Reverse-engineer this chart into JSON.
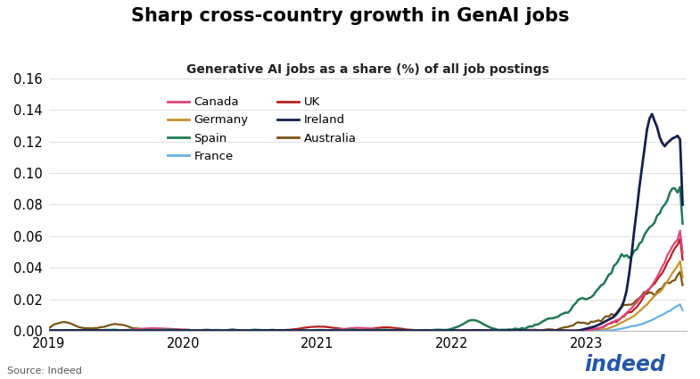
{
  "title": "Sharp cross-country growth in GenAI jobs",
  "subtitle": "Generative AI jobs as a share (%) of all job postings",
  "source": "Source: Indeed",
  "xlim": [
    2019.0,
    2023.75
  ],
  "ylim": [
    0.0,
    0.16
  ],
  "yticks": [
    0.0,
    0.02,
    0.04,
    0.06,
    0.08,
    0.1,
    0.12,
    0.14,
    0.16
  ],
  "xticks": [
    2019,
    2020,
    2021,
    2022,
    2023
  ],
  "colors": {
    "Canada": "#e0457b",
    "Germany": "#c8922a",
    "Spain": "#1e7a52",
    "France": "#6ab0e8",
    "UK": "#b82020",
    "Ireland": "#162050",
    "Australia": "#7a5515"
  },
  "legend_order": [
    "Canada",
    "Germany",
    "Spain",
    "France",
    "UK",
    "Ireland",
    "Australia"
  ]
}
